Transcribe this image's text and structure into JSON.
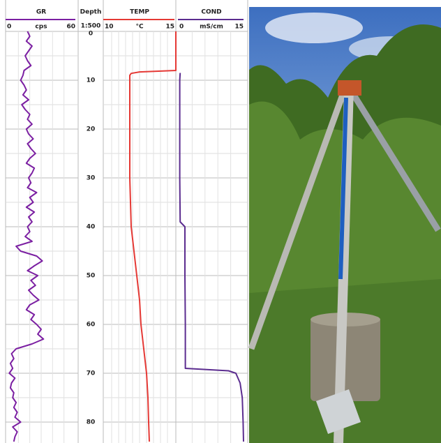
{
  "chart_data": {
    "type": "well-log",
    "depth_title": "Depth",
    "depth_scale": "1:500",
    "ylim": [
      0,
      84
    ],
    "yticks": [
      0,
      10,
      20,
      30,
      40,
      50,
      60,
      70,
      80
    ],
    "minor_yticks": [
      5,
      15,
      25,
      35,
      45,
      55,
      65,
      75
    ],
    "tracks": [
      {
        "title": "GR",
        "unit": "cps",
        "xlim": [
          0,
          60
        ],
        "xgrid": [
          10,
          20,
          30,
          40,
          50
        ],
        "color": "#7b1fa2",
        "depth": [
          0,
          1,
          2,
          3,
          4,
          5,
          6,
          7,
          8,
          9,
          10,
          11,
          12,
          13,
          14,
          15,
          16,
          17,
          18,
          19,
          20,
          21,
          22,
          23,
          24,
          25,
          26,
          27,
          28,
          29,
          30,
          31,
          32,
          33,
          34,
          35,
          36,
          37,
          38,
          39,
          40,
          41,
          42,
          43,
          44,
          45,
          46,
          47,
          48,
          49,
          50,
          51,
          52,
          53,
          54,
          55,
          56,
          57,
          58,
          59,
          60,
          61,
          62,
          63,
          64,
          65,
          66,
          67,
          68,
          69,
          70,
          71,
          72,
          73,
          74,
          75,
          76,
          77,
          78,
          79,
          80,
          81,
          82,
          83,
          84
        ],
        "values": [
          18,
          20,
          17,
          22,
          19,
          16,
          18,
          21,
          15,
          14,
          12,
          15,
          17,
          14,
          19,
          13,
          16,
          20,
          18,
          22,
          17,
          19,
          23,
          18,
          21,
          25,
          20,
          17,
          24,
          22,
          19,
          21,
          18,
          26,
          20,
          23,
          17,
          24,
          19,
          22,
          18,
          20,
          16,
          22,
          8,
          12,
          26,
          31,
          24,
          18,
          27,
          21,
          25,
          19,
          23,
          28,
          20,
          17,
          24,
          21,
          26,
          30,
          27,
          32,
          22,
          8,
          4,
          6,
          3,
          5,
          2,
          7,
          4,
          3,
          6,
          5,
          8,
          6,
          9,
          7,
          12,
          5,
          9,
          7,
          6
        ]
      },
      {
        "title": "TEMP",
        "unit": "°C",
        "xlim": [
          10,
          15
        ],
        "xgrid": [
          10.5,
          11,
          11.5,
          12,
          12.5,
          13,
          13.5,
          14,
          14.5
        ],
        "color": "#e53935",
        "depth": [
          0,
          8,
          8.3,
          8.6,
          9,
          10,
          20,
          30,
          40,
          45,
          50,
          55,
          60,
          65,
          70,
          75,
          80,
          84
        ],
        "values": [
          15.1,
          15.1,
          12.5,
          11.9,
          11.8,
          11.8,
          11.8,
          11.8,
          11.9,
          12.1,
          12.3,
          12.5,
          12.6,
          12.8,
          13.0,
          13.1,
          13.15,
          13.2
        ]
      },
      {
        "title": "COND",
        "unit": "mS/cm",
        "xlim": [
          0,
          15
        ],
        "xgrid": [
          3,
          6,
          9,
          12
        ],
        "color": "#5b2c8f",
        "depth": [
          8.5,
          10,
          20,
          30,
          39,
          40,
          50,
          60,
          69,
          69.5,
          70,
          72,
          75,
          80,
          84
        ],
        "values": [
          0.2,
          0.1,
          0.1,
          0.1,
          0.2,
          1.3,
          1.3,
          1.4,
          1.4,
          11.5,
          13.2,
          14.2,
          14.7,
          14.9,
          15.0
        ]
      }
    ]
  }
}
